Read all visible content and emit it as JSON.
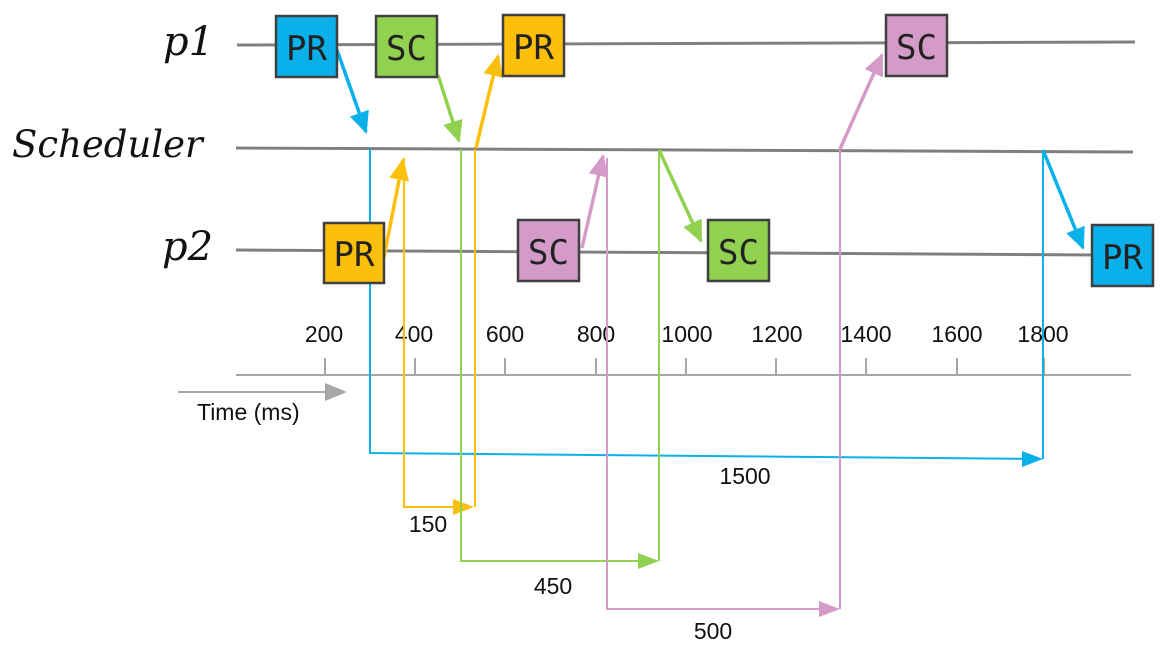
{
  "lanes": {
    "p1": "p1",
    "scheduler": "Scheduler",
    "p2": "p2"
  },
  "axis": {
    "title": "Time (ms)",
    "ticks": [
      "200",
      "400",
      "600",
      "800",
      "1000",
      "1200",
      "1400",
      "1600",
      "1800"
    ]
  },
  "boxes": {
    "p1_pr_1": "PR",
    "p1_sc_1": "SC",
    "p1_pr_2": "PR",
    "p1_sc_2": "SC",
    "p2_pr_1": "PR",
    "p2_sc_1": "SC",
    "p2_sc_2": "SC",
    "p2_pr_2": "PR"
  },
  "durations": {
    "blue": "1500",
    "yellow": "150",
    "green": "450",
    "pink": "500"
  },
  "colors": {
    "blue": "#0ab0ea",
    "yellow": "#fcbf0a",
    "green": "#92d050",
    "pink": "#d49bc8",
    "lane": "#7f7f7f",
    "axis": "#a6a6a6"
  }
}
